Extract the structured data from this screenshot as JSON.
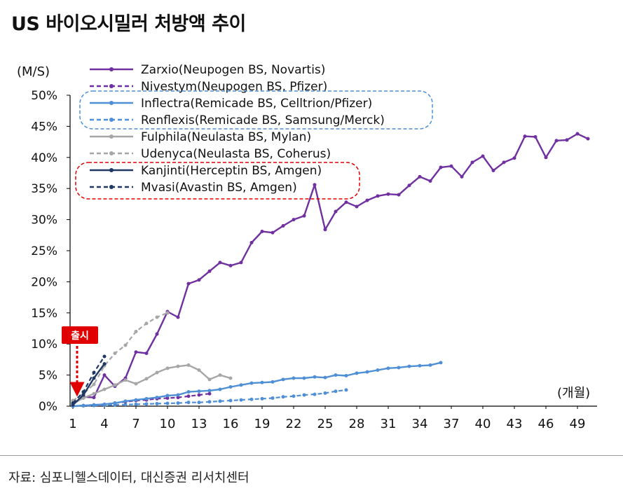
{
  "page": {
    "title": "US 바이오시밀러 처방액 추이",
    "source": "자료: 심포니헬스데이터, 대신증권 리서치센터"
  },
  "chart_data": {
    "type": "line",
    "ylabel": "(M/S)",
    "xlabel": "(개월)",
    "xlim": [
      1,
      50
    ],
    "ylim": [
      0,
      50
    ],
    "y_ticks": [
      "0%",
      "5%",
      "10%",
      "15%",
      "20%",
      "25%",
      "30%",
      "35%",
      "40%",
      "45%",
      "50%"
    ],
    "x_ticks": [
      1,
      4,
      7,
      10,
      13,
      16,
      19,
      22,
      25,
      28,
      31,
      34,
      37,
      40,
      43,
      46,
      49
    ],
    "grid": false,
    "legend_position": "top-left",
    "annotation": {
      "label": "출시",
      "x": 1
    },
    "series": [
      {
        "name": "Zarxio(Neupogen BS, Novartis)",
        "color": "#7030a0",
        "dash": "solid",
        "values": [
          0.3,
          1.5,
          1.4,
          5.0,
          3.2,
          4.5,
          8.7,
          8.5,
          11.6,
          15.2,
          14.3,
          19.7,
          20.3,
          21.7,
          23.1,
          22.6,
          23.1,
          26.3,
          28.1,
          27.9,
          29.0,
          30.0,
          30.6,
          35.6,
          28.4,
          31.3,
          32.8,
          32.1,
          33.1,
          33.8,
          34.1,
          34.0,
          35.5,
          36.9,
          36.2,
          38.4,
          38.6,
          36.9,
          39.2,
          40.2,
          37.9,
          39.2,
          39.9,
          43.4,
          43.3,
          40.0,
          42.7,
          42.8,
          43.8,
          43.0
        ]
      },
      {
        "name": "Nivestym(Neupogen BS, Pfizer)",
        "color": "#7030a0",
        "dash": "dashed",
        "values": [
          0.0,
          0.1,
          0.2,
          0.3,
          0.5,
          0.7,
          0.9,
          1.0,
          1.2,
          1.3,
          1.4,
          1.6,
          1.8,
          2.0
        ]
      },
      {
        "name": "Inflectra(Remicade BS, Celltrion/Pfizer)",
        "color": "#4f8fd6",
        "dash": "solid",
        "values": [
          0.0,
          0.1,
          0.2,
          0.3,
          0.5,
          0.8,
          1.0,
          1.2,
          1.4,
          1.7,
          1.8,
          2.3,
          2.4,
          2.5,
          2.7,
          3.1,
          3.4,
          3.7,
          3.8,
          3.9,
          4.3,
          4.5,
          4.5,
          4.7,
          4.6,
          5.0,
          4.9,
          5.3,
          5.5,
          5.8,
          6.1,
          6.2,
          6.4,
          6.5,
          6.6,
          7.0
        ]
      },
      {
        "name": "Renflexis(Remicade BS, Samsung/Merck)",
        "color": "#4f8fd6",
        "dash": "dashed",
        "values": [
          0.0,
          0.05,
          0.1,
          0.15,
          0.2,
          0.25,
          0.3,
          0.35,
          0.4,
          0.45,
          0.5,
          0.6,
          0.6,
          0.7,
          0.8,
          0.9,
          1.0,
          1.1,
          1.2,
          1.3,
          1.5,
          1.6,
          1.8,
          1.9,
          2.1,
          2.4,
          2.6
        ]
      },
      {
        "name": "Fulphila(Neulasta BS, Mylan)",
        "color": "#a6a6a6",
        "dash": "solid",
        "values": [
          0.4,
          1.3,
          2.0,
          2.7,
          3.4,
          4.2,
          3.6,
          4.4,
          5.4,
          6.1,
          6.4,
          6.6,
          5.8,
          4.3,
          5.0,
          4.5
        ]
      },
      {
        "name": "Udenyca(Neulasta BS, Coherus)",
        "color": "#a6a6a6",
        "dash": "dashed",
        "values": [
          0.9,
          2.0,
          3.5,
          6.5,
          8.5,
          9.8,
          12.0,
          13.3,
          14.3,
          15.0
        ]
      },
      {
        "name": "Kanjinti(Herceptin BS, Amgen)",
        "color": "#1f3864",
        "dash": "solid",
        "values": [
          0.2,
          1.8,
          4.5,
          6.8
        ]
      },
      {
        "name": "Mvasi(Avastin BS, Amgen)",
        "color": "#1f3864",
        "dash": "dashed",
        "values": [
          0.5,
          2.3,
          5.4,
          8.0
        ]
      }
    ]
  }
}
